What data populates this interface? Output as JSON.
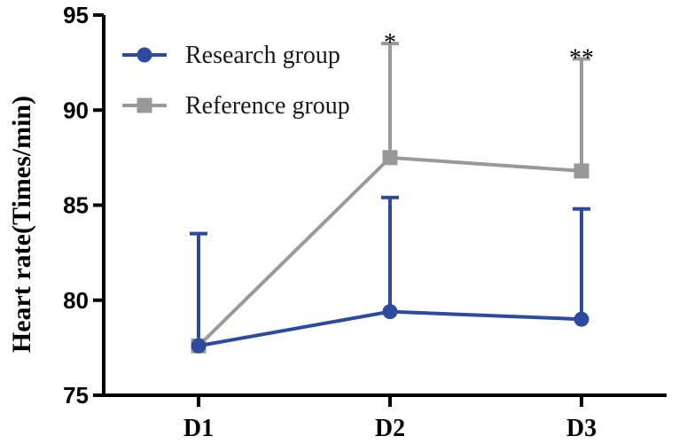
{
  "chart_data": {
    "type": "line",
    "title": "",
    "xlabel": "",
    "ylabel": "Heart rate(Times/min)",
    "categories": [
      "D1",
      "D2",
      "D3"
    ],
    "ylim": [
      75,
      95
    ],
    "yticks": [
      "75",
      "80",
      "85",
      "90",
      "95"
    ],
    "legend_position": "top-left",
    "series": [
      {
        "name": "Research group",
        "values": [
          77.6,
          79.4,
          79.0
        ],
        "error_upper": [
          83.5,
          85.4,
          84.8
        ],
        "color": "#2e4a9e",
        "marker": "circle"
      },
      {
        "name": "Reference group",
        "values": [
          77.6,
          87.5,
          86.8
        ],
        "error_upper": [
          77.6,
          93.5,
          92.7
        ],
        "color": "#999999",
        "marker": "square"
      }
    ],
    "annotations": [
      {
        "category": "D2",
        "text": "*"
      },
      {
        "category": "D3",
        "text": "**"
      }
    ]
  }
}
